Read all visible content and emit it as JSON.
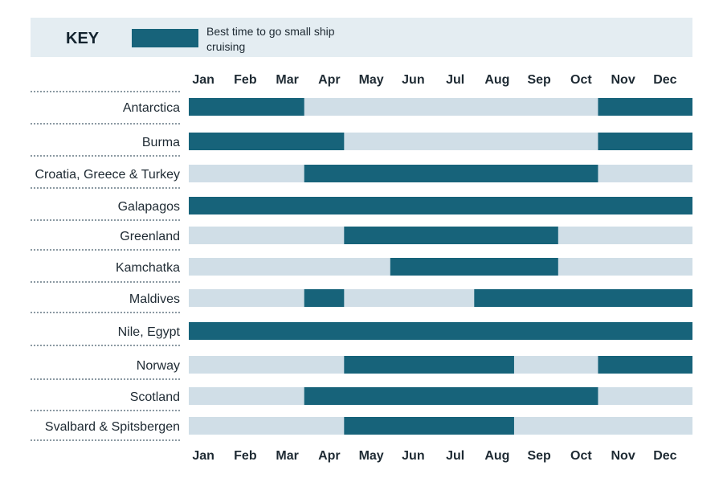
{
  "key": {
    "title": "KEY",
    "legend_text": "Best time to go small ship cruising"
  },
  "colors": {
    "best": "#17637a",
    "other": "#d0dee7",
    "key_background": "#e4edf2",
    "separator": "#8c9aa3"
  },
  "chart_data": {
    "type": "gantt",
    "months": [
      "Jan",
      "Feb",
      "Mar",
      "Apr",
      "May",
      "Jun",
      "Jul",
      "Aug",
      "Sep",
      "Oct",
      "Nov",
      "Dec"
    ],
    "x_range_months": [
      0,
      12
    ],
    "series": [
      {
        "name": "Best time to go small ship cruising"
      }
    ],
    "destinations": [
      {
        "name": "Antarctica",
        "periods": [
          [
            0,
            2.75
          ],
          [
            9.75,
            12
          ]
        ]
      },
      {
        "name": "Burma",
        "periods": [
          [
            0,
            3.7
          ],
          [
            9.75,
            12
          ]
        ]
      },
      {
        "name": "Croatia, Greece & Turkey",
        "periods": [
          [
            2.75,
            9.75
          ]
        ]
      },
      {
        "name": "Galapagos",
        "periods": [
          [
            0,
            12
          ]
        ]
      },
      {
        "name": "Greenland",
        "periods": [
          [
            3.7,
            8.8
          ]
        ]
      },
      {
        "name": "Kamchatka",
        "periods": [
          [
            4.8,
            8.8
          ]
        ]
      },
      {
        "name": "Maldives",
        "periods": [
          [
            2.75,
            3.7
          ],
          [
            6.8,
            12
          ]
        ]
      },
      {
        "name": "Nile, Egypt",
        "periods": [
          [
            0,
            12
          ]
        ]
      },
      {
        "name": "Norway",
        "periods": [
          [
            3.7,
            7.75
          ],
          [
            9.75,
            12
          ]
        ]
      },
      {
        "name": "Scotland",
        "periods": [
          [
            2.75,
            9.75
          ]
        ]
      },
      {
        "name": "Svalbard & Spitsbergen",
        "periods": [
          [
            3.7,
            7.75
          ]
        ]
      }
    ]
  }
}
